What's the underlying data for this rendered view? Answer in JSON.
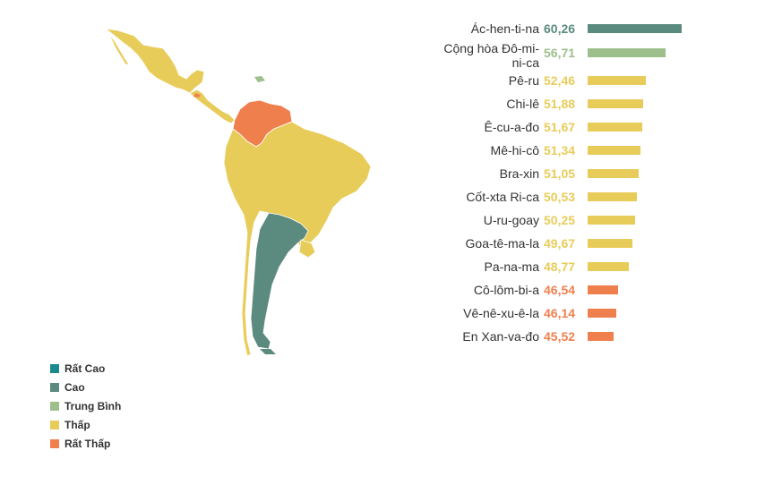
{
  "colors": {
    "rat_cao": "#1a8a8f",
    "cao": "#5b8a7f",
    "trung_binh": "#9dbf8c",
    "thap": "#e8cc5a",
    "rat_thap": "#f07f4e"
  },
  "legend": [
    {
      "label": "Rất Cao",
      "color": "#1a8a8f"
    },
    {
      "label": "Cao",
      "color": "#5b8a7f"
    },
    {
      "label": "Trung Bình",
      "color": "#9dbf8c"
    },
    {
      "label": "Thấp",
      "color": "#e8cc5a"
    },
    {
      "label": "Rất Thấp",
      "color": "#f07f4e"
    }
  ],
  "chart_data": {
    "type": "bar",
    "orientation": "horizontal",
    "categories": [
      "Ác-hen-ti-na",
      "Cộng hòa Đô-mi-ni-ca",
      "Pê-ru",
      "Chi-lê",
      "Ê-cu-a-đo",
      "Mê-hi-cô",
      "Bra-xin",
      "Cốt-xta Ri-ca",
      "U-ru-goay",
      "Goa-tê-ma-la",
      "Pa-na-ma",
      "Cô-lôm-bi-a",
      "Vê-nê-xu-ê-la",
      "En Xan-va-đo"
    ],
    "values": [
      60.26,
      56.71,
      52.46,
      51.88,
      51.67,
      51.34,
      51.05,
      50.53,
      50.25,
      49.67,
      48.77,
      46.54,
      46.14,
      45.52
    ],
    "value_labels": [
      "60,26",
      "56,71",
      "52,46",
      "51,88",
      "51,67",
      "51,34",
      "51,05",
      "50,53",
      "50,25",
      "49,67",
      "48,77",
      "46,54",
      "46,14",
      "45,52"
    ],
    "levels": [
      "cao",
      "trung_binh",
      "thap",
      "thap",
      "thap",
      "thap",
      "thap",
      "thap",
      "thap",
      "thap",
      "thap",
      "rat_thap",
      "rat_thap",
      "rat_thap"
    ],
    "legend_position": "bottom-left",
    "grid": false
  }
}
